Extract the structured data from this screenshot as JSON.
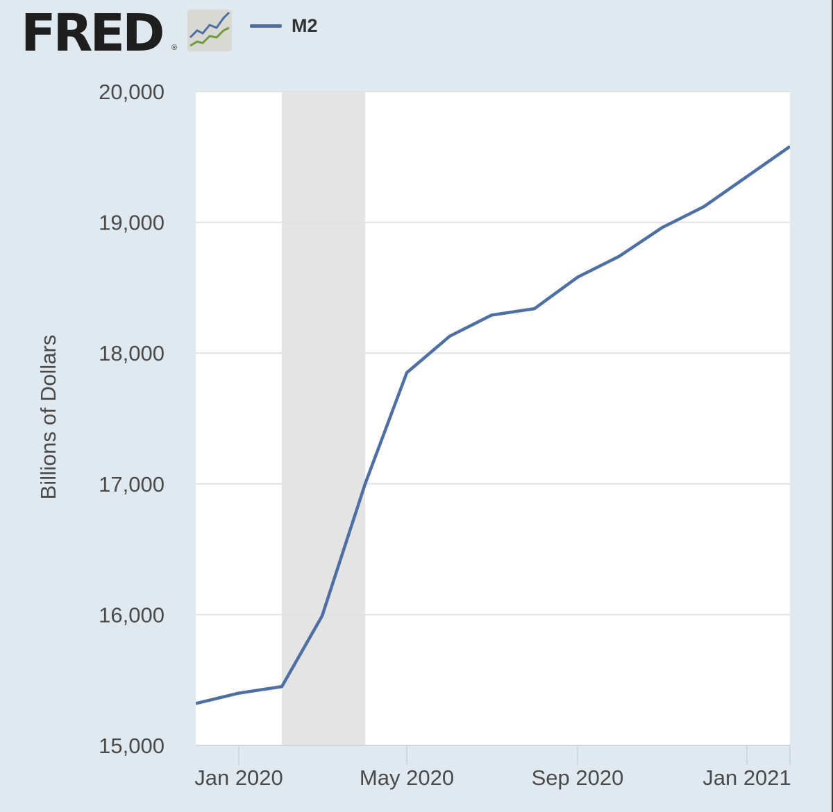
{
  "header": {
    "logo_text": "FRED",
    "logo_mark": "®",
    "logo_icon": "trend-lines-icon"
  },
  "colors": {
    "background": "#e1e9f0",
    "plot_background": "#ffffff",
    "series_line": "#4d6fa3",
    "recession_shade": "#e4e4e4",
    "grid": "#e1e1e1"
  },
  "chart_data": {
    "type": "line",
    "title": "",
    "xlabel": "",
    "ylabel": "Billions of Dollars",
    "ylim": [
      15000,
      20000
    ],
    "xlim": [
      "2019-12-01",
      "2021-02-01"
    ],
    "yticks": [
      15000,
      16000,
      17000,
      18000,
      19000,
      20000
    ],
    "ytick_labels": [
      "15,000",
      "16,000",
      "17,000",
      "18,000",
      "19,000",
      "20,000"
    ],
    "xticks": [
      "2020-01-01",
      "2020-05-01",
      "2020-09-01",
      "2021-01-01"
    ],
    "xtick_labels": [
      "Jan 2020",
      "May 2020",
      "Sep 2020",
      "Jan 2021"
    ],
    "grid": true,
    "legend_position": "top-left",
    "recession_shading": [
      {
        "start": "2020-02-01",
        "end": "2020-04-01"
      }
    ],
    "series": [
      {
        "name": "M2",
        "x": [
          "2019-12-01",
          "2020-01-01",
          "2020-02-01",
          "2020-03-01",
          "2020-04-01",
          "2020-05-01",
          "2020-06-01",
          "2020-07-01",
          "2020-08-01",
          "2020-09-01",
          "2020-10-01",
          "2020-11-01",
          "2020-12-01",
          "2021-01-01",
          "2021-02-01"
        ],
        "values": [
          15320,
          15400,
          15450,
          15990,
          17000,
          17850,
          18130,
          18290,
          18340,
          18580,
          18740,
          18960,
          19120,
          19350,
          19580
        ]
      }
    ]
  }
}
